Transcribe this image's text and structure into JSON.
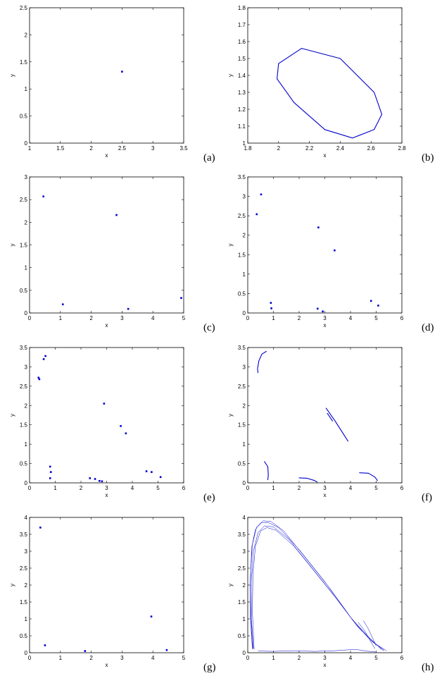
{
  "figure": {
    "colors": {
      "data": "#0000cc",
      "axes": "#000000"
    }
  },
  "chart_data": [
    {
      "panel": "(a)",
      "type": "scatter",
      "xlabel": "x",
      "ylabel": "y",
      "xlim": [
        1,
        3.5
      ],
      "ylim": [
        0,
        2.5
      ],
      "xticks": [
        "1",
        "1.5",
        "2",
        "2.5",
        "3",
        "3.5"
      ],
      "yticks": [
        "0",
        "0.5",
        "1",
        "1.5",
        "2",
        "2.5"
      ],
      "points": [
        [
          2.5,
          1.32
        ]
      ],
      "curves": []
    },
    {
      "panel": "(b)",
      "type": "line",
      "xlabel": "x",
      "ylabel": "y",
      "xlim": [
        1.8,
        2.8
      ],
      "ylim": [
        1.0,
        1.8
      ],
      "xticks": [
        "1.8",
        "2",
        "2.2",
        "2.4",
        "2.6",
        "2.8"
      ],
      "yticks": [
        "1",
        "1.1",
        "1.2",
        "1.3",
        "1.4",
        "1.5",
        "1.6",
        "1.7",
        "1.8"
      ],
      "points": [],
      "curves": [
        [
          [
            2.15,
            1.56
          ],
          [
            2.0,
            1.47
          ],
          [
            1.99,
            1.38
          ],
          [
            2.1,
            1.24
          ],
          [
            2.3,
            1.08
          ],
          [
            2.48,
            1.03
          ],
          [
            2.62,
            1.08
          ],
          [
            2.67,
            1.17
          ],
          [
            2.62,
            1.3
          ],
          [
            2.4,
            1.5
          ],
          [
            2.15,
            1.56
          ]
        ]
      ]
    },
    {
      "panel": "(c)",
      "type": "scatter",
      "xlabel": "x",
      "ylabel": "y",
      "xlim": [
        0,
        5
      ],
      "ylim": [
        0,
        3
      ],
      "xticks": [
        "0",
        "1",
        "2",
        "3",
        "4",
        "5"
      ],
      "yticks": [
        "0",
        "0.5",
        "1",
        "1.5",
        "2",
        "2.5",
        "3"
      ],
      "points": [
        [
          0.45,
          2.57
        ],
        [
          2.82,
          2.16
        ],
        [
          1.08,
          0.19
        ],
        [
          3.2,
          0.09
        ],
        [
          4.92,
          0.33
        ]
      ],
      "curves": []
    },
    {
      "panel": "(d)",
      "type": "scatter",
      "xlabel": "x",
      "ylabel": "y",
      "xlim": [
        0,
        6
      ],
      "ylim": [
        0,
        3.5
      ],
      "xticks": [
        "0",
        "1",
        "2",
        "3",
        "4",
        "5",
        "6"
      ],
      "yticks": [
        "0",
        "0.5",
        "1",
        "1.5",
        "2",
        "2.5",
        "3",
        "3.5"
      ],
      "points": [
        [
          0.52,
          3.05
        ],
        [
          0.35,
          2.54
        ],
        [
          2.75,
          2.2
        ],
        [
          3.38,
          1.61
        ],
        [
          0.9,
          0.26
        ],
        [
          0.92,
          0.12
        ],
        [
          2.72,
          0.11
        ],
        [
          2.92,
          0.04
        ],
        [
          4.8,
          0.31
        ],
        [
          5.08,
          0.19
        ]
      ],
      "curves": []
    },
    {
      "panel": "(e)",
      "type": "scatter",
      "xlabel": "x",
      "ylabel": "y",
      "xlim": [
        0,
        6
      ],
      "ylim": [
        0,
        3.5
      ],
      "xticks": [
        "0",
        "1",
        "2",
        "3",
        "4",
        "5",
        "6"
      ],
      "yticks": [
        "0",
        "0.5",
        "1",
        "1.5",
        "2",
        "2.5",
        "3",
        "3.5"
      ],
      "points": [
        [
          0.62,
          3.28
        ],
        [
          0.55,
          3.2
        ],
        [
          0.35,
          2.72
        ],
        [
          0.38,
          2.68
        ],
        [
          2.9,
          2.05
        ],
        [
          3.55,
          1.47
        ],
        [
          3.75,
          1.28
        ],
        [
          0.8,
          0.42
        ],
        [
          0.83,
          0.28
        ],
        [
          0.8,
          0.12
        ],
        [
          2.35,
          0.12
        ],
        [
          2.55,
          0.1
        ],
        [
          2.72,
          0.05
        ],
        [
          2.82,
          0.04
        ],
        [
          4.55,
          0.3
        ],
        [
          4.75,
          0.28
        ],
        [
          5.1,
          0.15
        ]
      ],
      "curves": []
    },
    {
      "panel": "(f)",
      "type": "line",
      "xlabel": "x",
      "ylabel": "y",
      "xlim": [
        0,
        6
      ],
      "ylim": [
        0,
        3.5
      ],
      "xticks": [
        "0",
        "1",
        "2",
        "3",
        "4",
        "5",
        "6"
      ],
      "yticks": [
        "0",
        "0.5",
        "1",
        "1.5",
        "2",
        "2.5",
        "3",
        "3.5"
      ],
      "points": [],
      "curves": [
        [
          [
            0.72,
            3.4
          ],
          [
            0.55,
            3.33
          ],
          [
            0.43,
            3.15
          ],
          [
            0.38,
            2.95
          ],
          [
            0.4,
            2.85
          ]
        ],
        [
          [
            3.05,
            1.93
          ],
          [
            3.4,
            1.6
          ],
          [
            3.9,
            1.08
          ]
        ],
        [
          [
            3.1,
            1.8
          ],
          [
            3.3,
            1.6
          ]
        ],
        [
          [
            0.65,
            0.55
          ],
          [
            0.78,
            0.42
          ],
          [
            0.8,
            0.2
          ],
          [
            0.78,
            0.08
          ]
        ],
        [
          [
            2.0,
            0.13
          ],
          [
            2.3,
            0.12
          ],
          [
            2.6,
            0.06
          ],
          [
            2.7,
            0.02
          ]
        ],
        [
          [
            4.35,
            0.26
          ],
          [
            4.7,
            0.25
          ],
          [
            4.95,
            0.15
          ],
          [
            5.05,
            0.06
          ]
        ]
      ]
    },
    {
      "panel": "(g)",
      "type": "scatter",
      "xlabel": "x",
      "ylabel": "y",
      "xlim": [
        0,
        5
      ],
      "ylim": [
        0,
        4
      ],
      "xticks": [
        "0",
        "1",
        "2",
        "3",
        "4",
        "5"
      ],
      "yticks": [
        "0",
        "0.5",
        "1",
        "1.5",
        "2",
        "2.5",
        "3",
        "3.5",
        "4"
      ],
      "points": [
        [
          0.35,
          3.7
        ],
        [
          0.5,
          0.22
        ],
        [
          1.8,
          0.05
        ],
        [
          3.95,
          1.07
        ],
        [
          4.45,
          0.08
        ]
      ],
      "curves": []
    },
    {
      "panel": "(h)",
      "type": "line",
      "xlabel": "x",
      "ylabel": "y",
      "xlim": [
        0,
        6
      ],
      "ylim": [
        0,
        4
      ],
      "xticks": [
        "0",
        "1",
        "2",
        "3",
        "4",
        "5",
        "6"
      ],
      "yticks": [
        "0",
        "0.5",
        "1",
        "1.5",
        "2",
        "2.5",
        "3",
        "3.5",
        "4"
      ],
      "points": [],
      "curves": [
        [
          [
            0.2,
            0.12
          ],
          [
            0.12,
            1.0
          ],
          [
            0.1,
            2.0
          ],
          [
            0.15,
            3.1
          ],
          [
            0.3,
            3.65
          ],
          [
            0.55,
            3.85
          ],
          [
            0.8,
            3.85
          ],
          [
            1.2,
            3.7
          ],
          [
            2.0,
            3.05
          ],
          [
            3.0,
            2.1
          ],
          [
            4.0,
            1.05
          ],
          [
            4.6,
            0.55
          ],
          [
            5.0,
            0.25
          ],
          [
            5.2,
            0.1
          ]
        ],
        [
          [
            0.18,
            0.1
          ],
          [
            0.1,
            1.1
          ],
          [
            0.1,
            2.2
          ],
          [
            0.18,
            3.2
          ],
          [
            0.35,
            3.72
          ],
          [
            0.6,
            3.9
          ],
          [
            0.9,
            3.88
          ],
          [
            1.4,
            3.6
          ],
          [
            2.2,
            2.85
          ],
          [
            3.2,
            1.9
          ],
          [
            4.1,
            0.95
          ],
          [
            4.7,
            0.45
          ],
          [
            5.1,
            0.18
          ],
          [
            5.3,
            0.05
          ]
        ],
        [
          [
            0.22,
            0.12
          ],
          [
            0.14,
            1.0
          ],
          [
            0.14,
            2.1
          ],
          [
            0.22,
            3.0
          ],
          [
            0.4,
            3.55
          ],
          [
            0.65,
            3.75
          ],
          [
            1.0,
            3.72
          ],
          [
            1.6,
            3.35
          ],
          [
            2.4,
            2.6
          ],
          [
            3.3,
            1.75
          ],
          [
            4.2,
            0.85
          ],
          [
            4.8,
            0.35
          ],
          [
            5.3,
            0.08
          ]
        ],
        [
          [
            0.25,
            0.1
          ],
          [
            0.18,
            1.2
          ],
          [
            0.2,
            2.3
          ],
          [
            0.3,
            3.15
          ],
          [
            0.5,
            3.6
          ],
          [
            0.75,
            3.7
          ],
          [
            1.1,
            3.62
          ],
          [
            1.8,
            3.15
          ],
          [
            2.6,
            2.4
          ],
          [
            3.5,
            1.55
          ],
          [
            4.3,
            0.75
          ],
          [
            4.9,
            0.3
          ],
          [
            5.4,
            0.06
          ]
        ],
        [
          [
            0.4,
            0.05
          ],
          [
            1.0,
            0.04
          ],
          [
            1.8,
            0.06
          ],
          [
            2.6,
            0.04
          ],
          [
            3.4,
            0.06
          ],
          [
            4.2,
            0.1
          ],
          [
            4.6,
            0.05
          ],
          [
            5.0,
            0.02
          ]
        ],
        [
          [
            4.5,
            0.95
          ],
          [
            4.7,
            0.7
          ],
          [
            4.85,
            0.45
          ],
          [
            5.0,
            0.2
          ]
        ],
        [
          [
            4.3,
            0.9
          ],
          [
            4.55,
            0.65
          ],
          [
            4.75,
            0.38
          ],
          [
            4.95,
            0.12
          ]
        ]
      ]
    }
  ]
}
